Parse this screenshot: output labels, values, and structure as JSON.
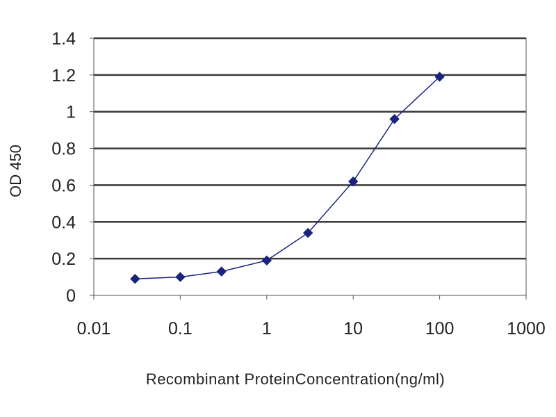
{
  "chart_data": {
    "type": "scatter",
    "x_scale": "log",
    "title": "",
    "xlabel": "Recombinant ProteinConcentration(ng/ml)",
    "ylabel": "OD 450",
    "xlim": [
      0.01,
      1000
    ],
    "ylim": [
      0,
      1.4
    ],
    "x_ticks": [
      0.01,
      0.1,
      1,
      10,
      100,
      1000
    ],
    "x_tick_labels": [
      "0.01",
      "0.1",
      "1",
      "10",
      "100",
      "1000"
    ],
    "y_ticks": [
      0,
      0.2,
      0.4,
      0.6,
      0.8,
      1.0,
      1.2,
      1.4
    ],
    "y_tick_labels": [
      "0",
      "0.2",
      "0.4",
      "0.6",
      "0.8",
      "1",
      "1.2",
      "1.4"
    ],
    "grid": "horizontal",
    "legend": "none",
    "series": [
      {
        "x": [
          0.03,
          0.1,
          0.3,
          1,
          3,
          10,
          30,
          100
        ],
        "y": [
          0.09,
          0.1,
          0.13,
          0.19,
          0.34,
          0.62,
          0.96,
          1.19
        ],
        "color": "#1a237e",
        "marker": "diamond",
        "line": true
      }
    ],
    "colors": {
      "plot_background": "#ffffff",
      "gridline": "#3a3a3a",
      "plot_border": "#555555",
      "series": "#1a237e"
    }
  }
}
